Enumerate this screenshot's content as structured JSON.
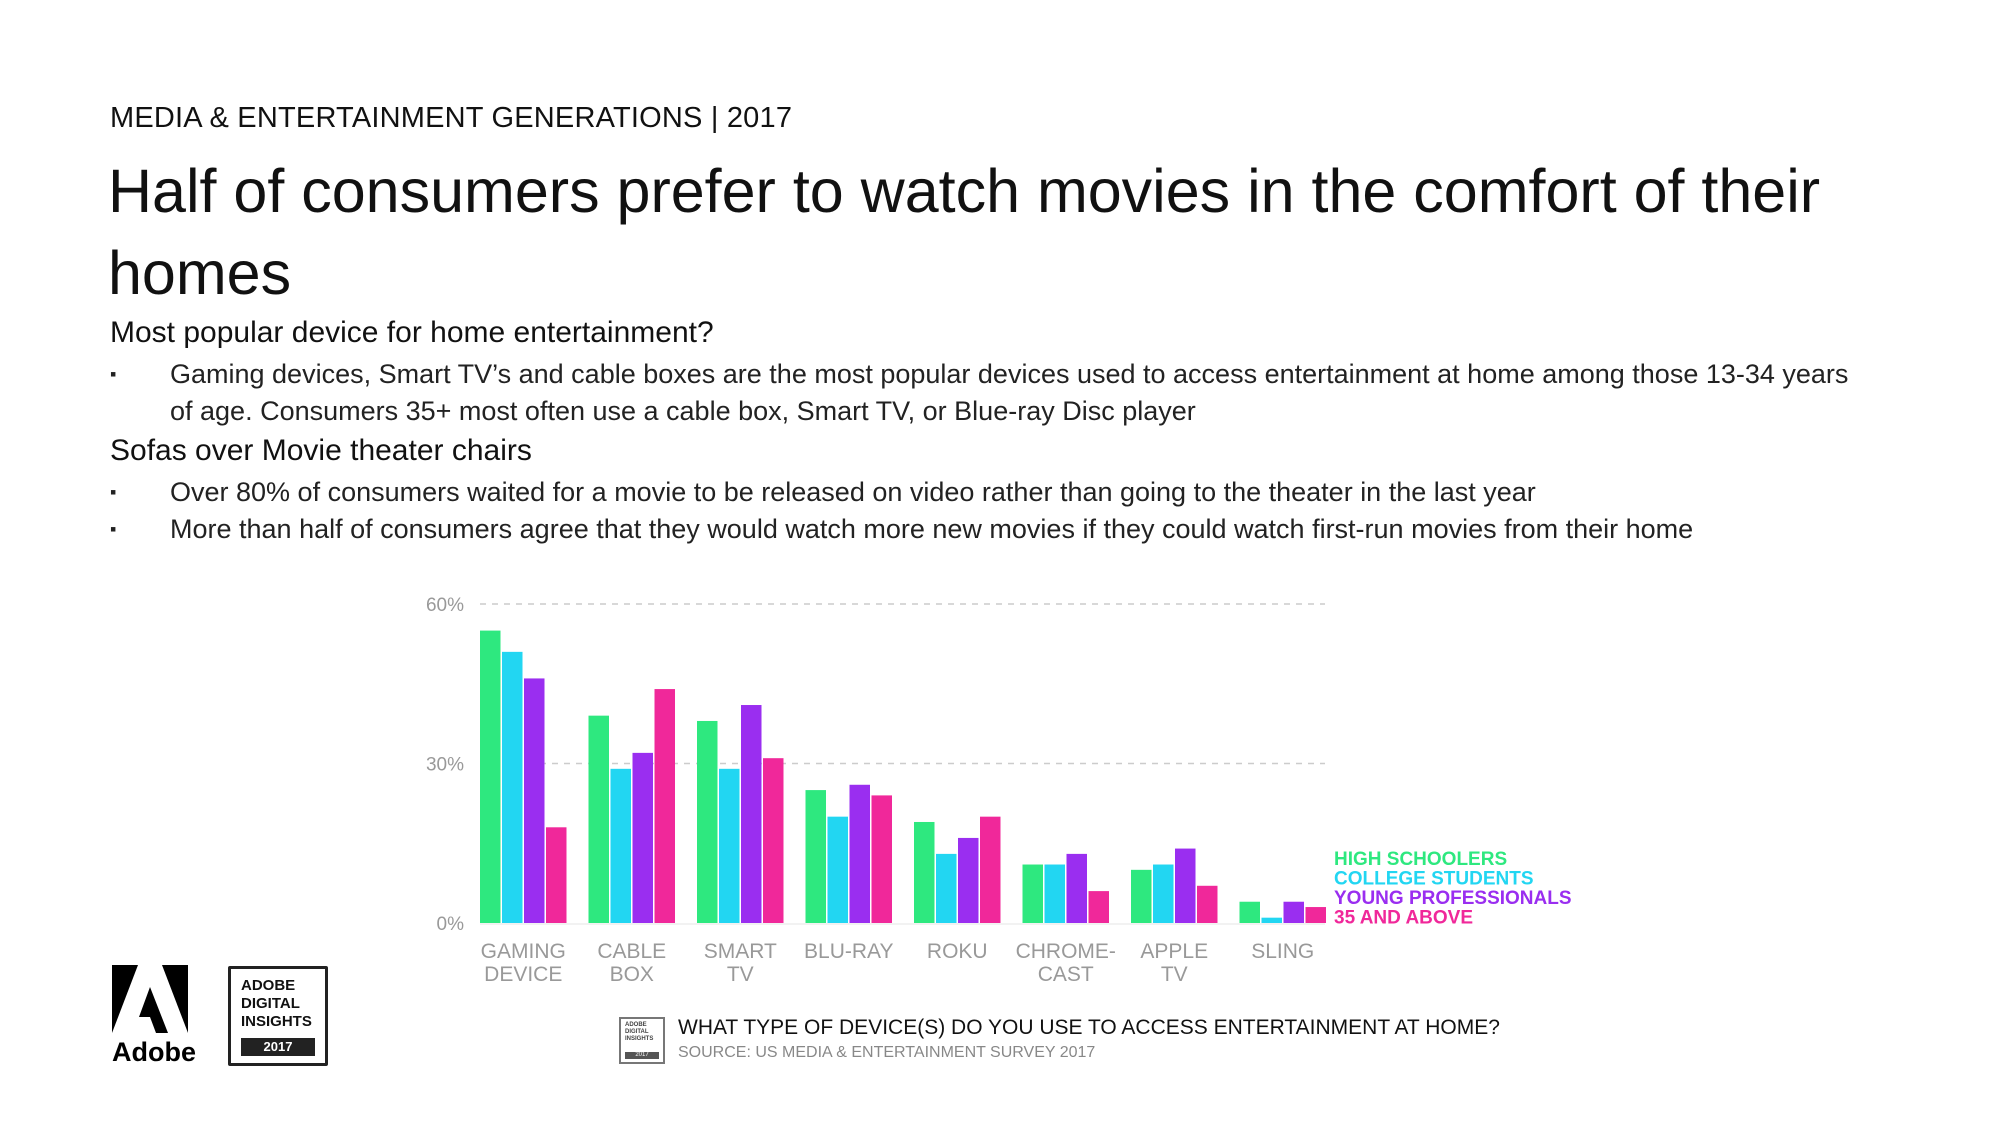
{
  "header": {
    "kicker": "MEDIA & ENTERTAINMENT GENERATIONS | 2017",
    "title": "Half of consumers prefer to watch movies in the comfort of their homes"
  },
  "sections": [
    {
      "heading": "Most popular device for home entertainment?",
      "bullets": [
        "Gaming devices, Smart TV’s and cable boxes are the most popular devices used to access entertainment at home among those 13-34 years of age. Consumers 35+ most often use a cable box, Smart TV, or Blue-ray Disc player"
      ]
    },
    {
      "heading": "Sofas over Movie theater chairs",
      "bullets": [
        "Over 80% of consumers waited for a movie to be released on video rather than going to the theater in the last year",
        "More than half of consumers agree that they would watch more new movies if they could watch first-run movies from their home"
      ]
    }
  ],
  "bullet_mark": "▪",
  "chart_data": {
    "type": "bar",
    "categories": [
      [
        "GAMING",
        "DEVICE"
      ],
      [
        "CABLE",
        "BOX"
      ],
      [
        "SMART",
        "TV"
      ],
      [
        "BLU-RAY"
      ],
      [
        "ROKU"
      ],
      [
        "CHROME-",
        "CAST"
      ],
      [
        "APPLE",
        "TV"
      ],
      [
        "SLING"
      ]
    ],
    "series": [
      {
        "name": "HIGH SCHOOLERS",
        "color": "#2ee87f",
        "values": [
          55,
          39,
          38,
          25,
          19,
          11,
          10,
          4
        ]
      },
      {
        "name": "COLLEGE STUDENTS",
        "color": "#22d6f2",
        "values": [
          51,
          29,
          29,
          20,
          13,
          11,
          11,
          1
        ]
      },
      {
        "name": "YOUNG PROFESSIONALS",
        "color": "#9a2ef0",
        "values": [
          46,
          32,
          41,
          26,
          16,
          13,
          14,
          4
        ]
      },
      {
        "name": "35 AND ABOVE",
        "color": "#f0289a",
        "values": [
          18,
          44,
          31,
          24,
          20,
          6,
          7,
          3
        ]
      }
    ],
    "yticks": [
      "60%",
      "30%",
      "0%"
    ],
    "ylim": [
      0,
      60
    ],
    "grid": "dashed horizontal at 30% and 60%",
    "legend_position": "right"
  },
  "footer": {
    "adobe_label": "Adobe",
    "badge_lines": [
      "ADOBE",
      "DIGITAL",
      "INSIGHTS"
    ],
    "badge_year": "2017",
    "question": "WHAT TYPE OF DEVICE(S) DO YOU USE TO ACCESS ENTERTAINMENT AT HOME?",
    "source": "SOURCE: US MEDIA & ENTERTAINMENT SURVEY 2017"
  },
  "colors": {
    "text": "#111111",
    "axis_label": "#999999",
    "grid": "#cccccc"
  },
  "icons": {
    "adobe_logo": "adobe-logo-icon",
    "badge": "adobe-digital-insights-badge"
  }
}
